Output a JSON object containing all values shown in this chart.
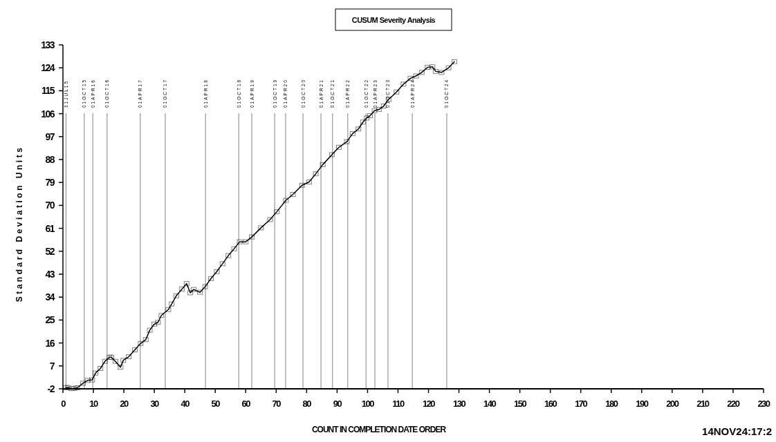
{
  "chart_data": {
    "type": "line",
    "title": "CUSUM Severity Analysis",
    "xlabel": "COUNT IN COMPLETION DATE ORDER",
    "ylabel": "Standard Deviation Units",
    "xlim": [
      0,
      230
    ],
    "xticks": [
      0,
      10,
      20,
      30,
      40,
      50,
      60,
      70,
      80,
      90,
      100,
      110,
      120,
      130,
      140,
      150,
      160,
      170,
      180,
      190,
      200,
      210,
      220,
      230
    ],
    "ylim": [
      -2,
      133
    ],
    "yticks": [
      -2,
      7,
      16,
      25,
      34,
      43,
      52,
      61,
      70,
      79,
      88,
      97,
      106,
      115,
      124,
      133
    ],
    "grid": false,
    "marker": "square",
    "line_style": "solid",
    "series": [
      {
        "color": "#000000",
        "x": [
          1,
          1.7,
          2.8,
          3.7,
          4.7,
          6.6,
          8.1,
          9.6,
          10.7,
          12.3,
          13.8,
          15.3,
          15.9,
          17.2,
          18.9,
          19.8,
          21.6,
          23.6,
          25.5,
          27.2,
          28.5,
          30,
          31.2,
          32.3,
          34.6,
          35.7,
          37.2,
          39.1,
          40.6,
          41.8,
          42.9,
          45,
          46.7,
          48.6,
          50.5,
          52.4,
          54.3,
          56.2,
          58,
          60,
          62,
          65,
          68,
          70.2,
          73.2,
          75.5,
          78.5,
          80.8,
          83,
          85.3,
          88.3,
          90.6,
          93.2,
          95.1,
          97,
          98.5,
          99.7,
          100.8,
          102.3,
          103.8,
          105.3,
          106.9,
          109.5,
          111.8,
          114.1,
          115.9,
          117.8,
          119.7,
          121.3,
          122.4,
          124.3,
          126.6,
          128.5
        ],
        "values": [
          -1.5,
          -1.5,
          -1.9,
          -1.8,
          -1.6,
          0.2,
          1.3,
          1.5,
          4.2,
          6,
          8.8,
          10.4,
          10.4,
          8.8,
          6.5,
          9.2,
          10.6,
          13.3,
          15.8,
          17.3,
          21,
          23.4,
          24.1,
          26.8,
          29.1,
          31.3,
          34.5,
          37.2,
          39.3,
          35.7,
          37,
          35.9,
          38.1,
          41.3,
          44,
          47.1,
          50.3,
          53,
          55.7,
          55.7,
          57.6,
          61.2,
          64.4,
          67.5,
          72,
          74.3,
          77.9,
          79.2,
          82.4,
          86,
          89.9,
          92.8,
          95,
          98.2,
          100,
          102.7,
          104.3,
          105.2,
          107.2,
          107.7,
          109,
          111.6,
          114.5,
          117.6,
          119.9,
          120.8,
          122.2,
          124.2,
          124.4,
          122.6,
          122.2,
          124,
          126.4
        ]
      }
    ],
    "ref_lines": [
      {
        "axis": "x",
        "value": 1,
        "label": "31JUL15",
        "color": "#808080"
      },
      {
        "axis": "x",
        "value": 7,
        "label": "01OCT15",
        "color": "#808080"
      },
      {
        "axis": "x",
        "value": 9.8,
        "label": "01APR16",
        "color": "#808080"
      },
      {
        "axis": "x",
        "value": 14.5,
        "label": "01OCT16",
        "color": "#808080"
      },
      {
        "axis": "x",
        "value": 25.4,
        "label": "01APR17",
        "color": "#808080"
      },
      {
        "axis": "x",
        "value": 33.6,
        "label": "01OCT17",
        "color": "#808080"
      },
      {
        "axis": "x",
        "value": 46.8,
        "label": "01APR18",
        "color": "#808080"
      },
      {
        "axis": "x",
        "value": 57.7,
        "label": "01OCT18",
        "color": "#808080"
      },
      {
        "axis": "x",
        "value": 62,
        "label": "01APR19",
        "color": "#808080"
      },
      {
        "axis": "x",
        "value": 69.5,
        "label": "01OCT19",
        "color": "#808080"
      },
      {
        "axis": "x",
        "value": 73.1,
        "label": "01APR20",
        "color": "#808080"
      },
      {
        "axis": "x",
        "value": 78.8,
        "label": "01OCT20",
        "color": "#808080"
      },
      {
        "axis": "x",
        "value": 84.7,
        "label": "01APR21",
        "color": "#808080"
      },
      {
        "axis": "x",
        "value": 88.5,
        "label": "01OCT21",
        "color": "#808080"
      },
      {
        "axis": "x",
        "value": 93.5,
        "label": "01APR22",
        "color": "#808080"
      },
      {
        "axis": "x",
        "value": 99.5,
        "label": "01OCT22",
        "color": "#808080"
      },
      {
        "axis": "x",
        "value": 102.4,
        "label": "01APR23",
        "color": "#808080"
      },
      {
        "axis": "x",
        "value": 106.7,
        "label": "01OCT23",
        "color": "#808080"
      },
      {
        "axis": "x",
        "value": 114.7,
        "label": "01APR24",
        "color": "#808080"
      },
      {
        "axis": "x",
        "value": 126,
        "label": "01OCT24",
        "color": "#808080"
      }
    ],
    "annotations": [
      "14NOV24:17:2"
    ]
  }
}
